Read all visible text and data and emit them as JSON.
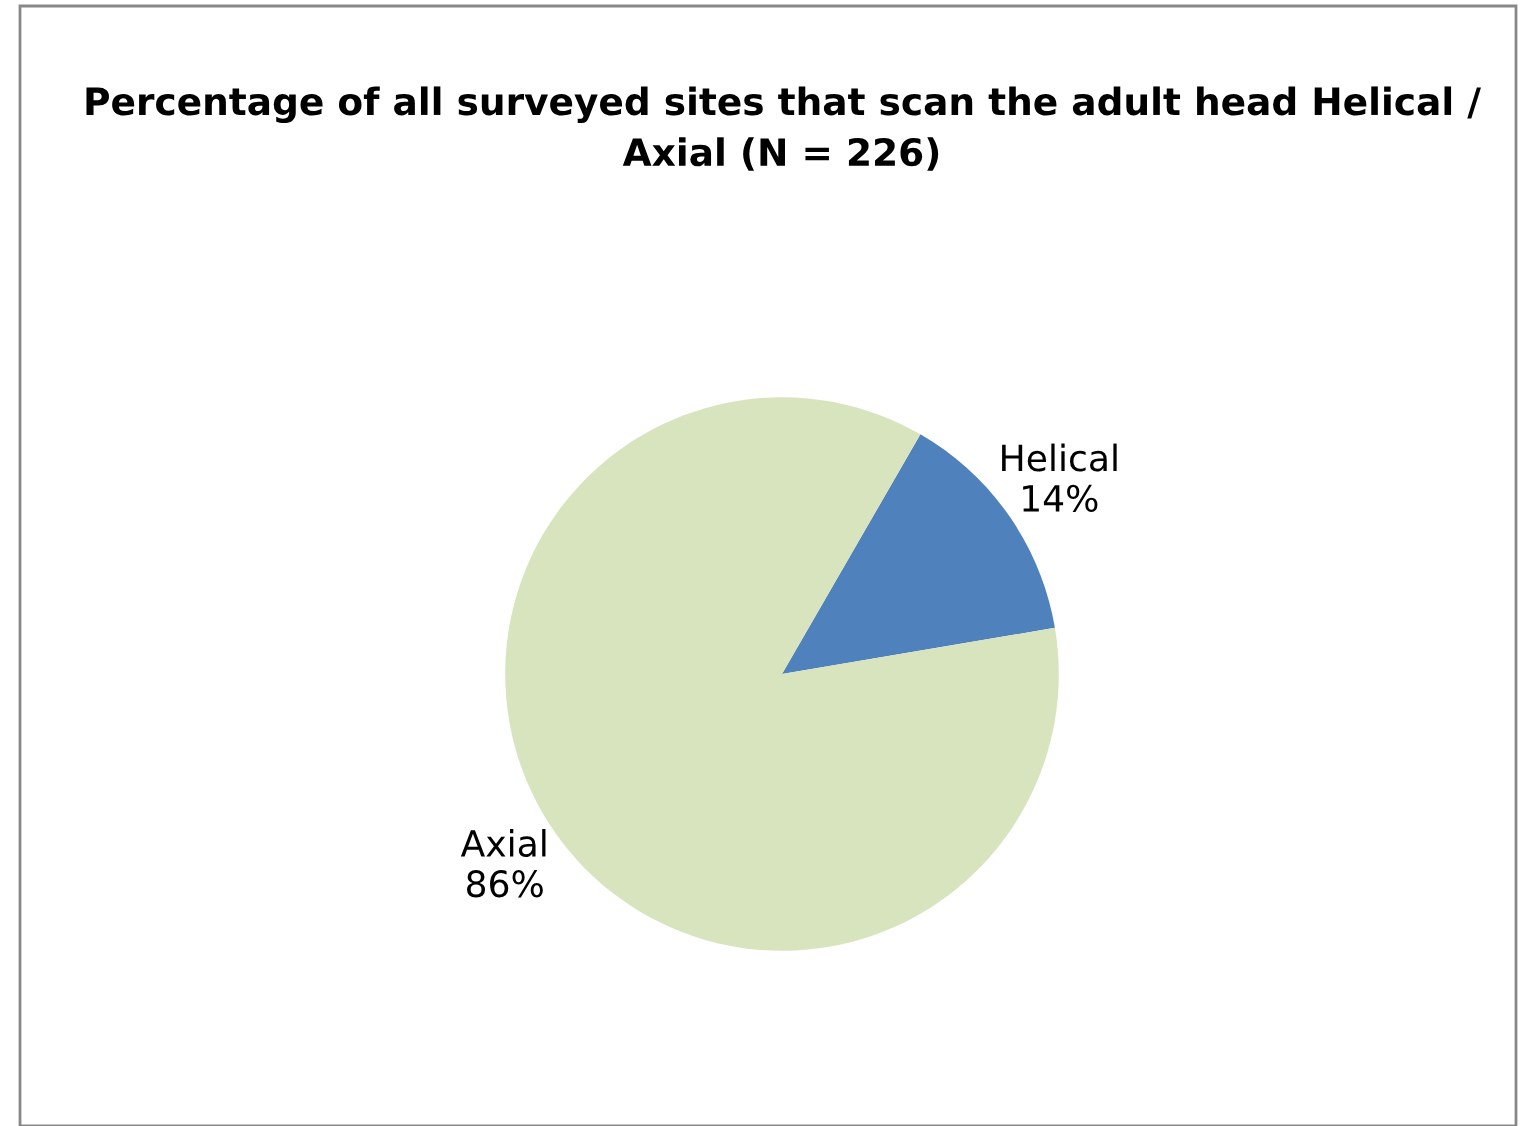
{
  "chart_data": {
    "type": "pie",
    "title": "Percentage of all surveyed sites that scan the adult head Helical / Axial (N = 226)",
    "categories": [
      "Helical",
      "Axial"
    ],
    "values": [
      14,
      86
    ],
    "value_labels": [
      "14%",
      "86%"
    ],
    "colors": [
      "#4f81bd",
      "#d7e4bd"
    ],
    "legend": false
  }
}
